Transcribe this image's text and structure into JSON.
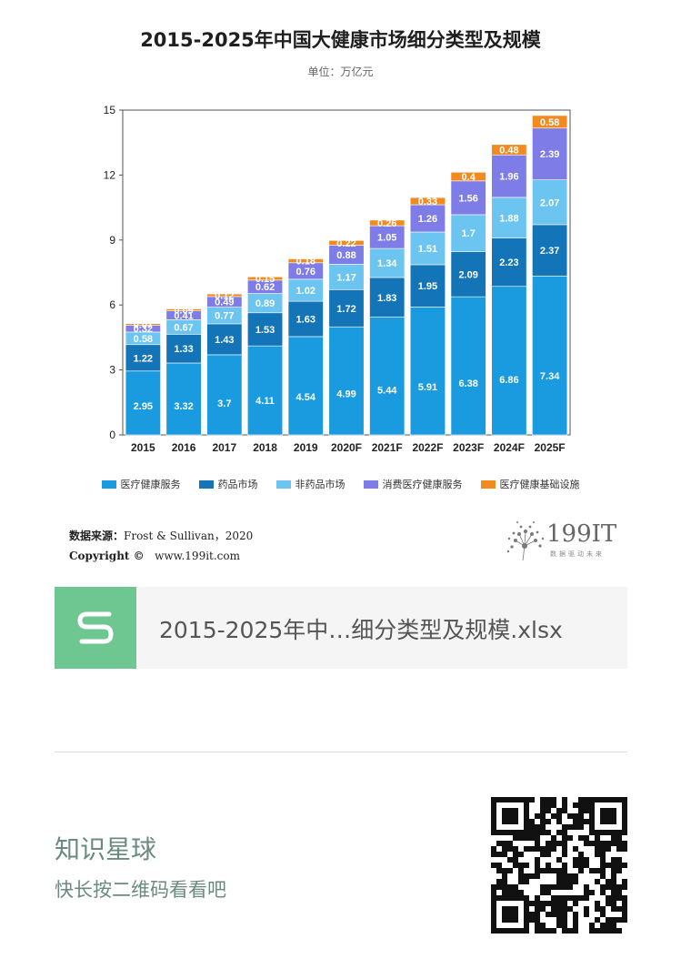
{
  "chart_data": {
    "type": "bar",
    "stacked": true,
    "title": "2015-2025年中国大健康市场细分类型及规模",
    "subtitle": "单位：万亿元",
    "categories": [
      "2015",
      "2016",
      "2017",
      "2018",
      "2019",
      "2020F",
      "2021F",
      "2022F",
      "2023F",
      "2024F",
      "2025F"
    ],
    "ylim": [
      0,
      15
    ],
    "yticks": [
      0,
      3,
      6,
      9,
      12,
      15
    ],
    "series": [
      {
        "name": "医疗健康服务",
        "color": "#1a9be0",
        "values": [
          2.95,
          3.32,
          3.7,
          4.11,
          4.54,
          4.99,
          5.44,
          5.91,
          6.38,
          6.86,
          7.34
        ]
      },
      {
        "name": "药品市场",
        "color": "#1474b8",
        "values": [
          1.22,
          1.33,
          1.43,
          1.53,
          1.63,
          1.72,
          1.83,
          1.95,
          2.09,
          2.23,
          2.37
        ]
      },
      {
        "name": "非药品市场",
        "color": "#6cc4f0",
        "values": [
          0.58,
          0.67,
          0.77,
          0.89,
          1.02,
          1.17,
          1.34,
          1.51,
          1.7,
          1.88,
          2.07
        ]
      },
      {
        "name": "消费医疗健康服务",
        "color": "#7e7de8",
        "values": [
          0.32,
          0.41,
          0.49,
          0.62,
          0.76,
          0.88,
          1.05,
          1.26,
          1.56,
          1.96,
          2.39
        ]
      },
      {
        "name": "医疗健康基础设施",
        "color": "#f28a1e",
        "values": [
          0.07,
          0.09,
          0.12,
          0.15,
          0.18,
          0.22,
          0.26,
          0.33,
          0.4,
          0.48,
          0.58
        ]
      }
    ]
  },
  "source": {
    "label": "数据来源：",
    "text": "Frost & Sullivan，2020",
    "copyright_label": "Copyright ©",
    "site": "www.199it.com"
  },
  "logo": {
    "text": "199IT",
    "sub": "数据驱动未来"
  },
  "file": {
    "name": "2015-2025年中…细分类型及规模.xlsx",
    "icon_letter": "S"
  },
  "planet": {
    "title": "知识星球",
    "subtitle": "快长按二维码看看吧"
  },
  "colors": {
    "file_icon": "#6ec790",
    "planet_text": "#6b8a80"
  }
}
